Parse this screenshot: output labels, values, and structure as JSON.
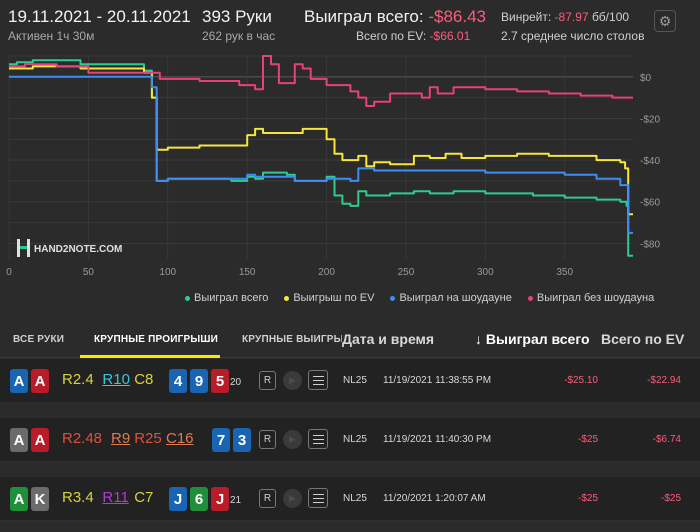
{
  "header": {
    "dates": "19.11.2021 - 20.11.2021",
    "active": "Активен 1ч 30м",
    "hands": "393 Руки",
    "per_hour": "262 рук в час",
    "won_label": "Выиграл всего:",
    "won_value": "-$86.43",
    "ev_label": "Всего по EV:",
    "ev_value": "-$66.01",
    "winrate_label": "Винрейт:",
    "winrate_value": "-87.97",
    "winrate_unit": "бб/100",
    "tables": "2.7 среднее число столов",
    "gear_icon": "gear-icon"
  },
  "chart_data": {
    "type": "line",
    "watermark": "HAND2NOTE.COM",
    "xlim": [
      0,
      393
    ],
    "ylim": [
      -88,
      10
    ],
    "x_ticks": [
      0,
      50,
      100,
      150,
      200,
      250,
      300,
      350
    ],
    "x_tick_labels": [
      "0",
      "50",
      "100",
      "150",
      "200",
      "250",
      "300",
      "350"
    ],
    "y_ticks": [
      0,
      -20,
      -40,
      -60,
      -80
    ],
    "y_tick_labels": [
      "$0",
      "-$20",
      "-$40",
      "-$60",
      "-$80"
    ],
    "grid": true,
    "legend_position": "bottom",
    "series": [
      {
        "name": "Выиграл всего",
        "color": "#2ecc8f",
        "points": [
          [
            0,
            6
          ],
          [
            5,
            7
          ],
          [
            15,
            8
          ],
          [
            45,
            6
          ],
          [
            85,
            3
          ],
          [
            90,
            -10
          ],
          [
            93,
            -50
          ],
          [
            100,
            -49
          ],
          [
            140,
            -50
          ],
          [
            150,
            -48
          ],
          [
            155,
            -49
          ],
          [
            160,
            -46
          ],
          [
            175,
            -47
          ],
          [
            180,
            -50
          ],
          [
            195,
            -50
          ],
          [
            200,
            -48
          ],
          [
            205,
            -57
          ],
          [
            210,
            -61
          ],
          [
            215,
            -62
          ],
          [
            220,
            -55
          ],
          [
            225,
            -57
          ],
          [
            240,
            -56
          ],
          [
            255,
            -55
          ],
          [
            265,
            -56
          ],
          [
            280,
            -55
          ],
          [
            300,
            -56
          ],
          [
            330,
            -57
          ],
          [
            350,
            -58
          ],
          [
            370,
            -59
          ],
          [
            385,
            -60
          ],
          [
            389,
            -62
          ],
          [
            390,
            -86
          ],
          [
            393,
            -86
          ]
        ]
      },
      {
        "name": "Выигрыш по EV",
        "color": "#f5e63c",
        "points": [
          [
            0,
            4
          ],
          [
            15,
            5
          ],
          [
            45,
            4
          ],
          [
            85,
            2
          ],
          [
            90,
            -10
          ],
          [
            93,
            -35
          ],
          [
            100,
            -34
          ],
          [
            120,
            -33
          ],
          [
            140,
            -33
          ],
          [
            150,
            -28
          ],
          [
            155,
            -25
          ],
          [
            160,
            -27
          ],
          [
            175,
            -27
          ],
          [
            185,
            -25
          ],
          [
            195,
            -25
          ],
          [
            200,
            -30
          ],
          [
            205,
            -37
          ],
          [
            210,
            -40
          ],
          [
            215,
            -40
          ],
          [
            220,
            -38
          ],
          [
            225,
            -43
          ],
          [
            230,
            -41
          ],
          [
            240,
            -42
          ],
          [
            255,
            -38
          ],
          [
            265,
            -39
          ],
          [
            275,
            -37
          ],
          [
            285,
            -39
          ],
          [
            300,
            -38
          ],
          [
            320,
            -37
          ],
          [
            340,
            -38
          ],
          [
            355,
            -38
          ],
          [
            370,
            -40
          ],
          [
            385,
            -41
          ],
          [
            388,
            -44
          ],
          [
            390,
            -66
          ],
          [
            393,
            -66
          ]
        ]
      },
      {
        "name": "Выиграл на шоудауне",
        "color": "#3d8ef0",
        "points": [
          [
            0,
            0
          ],
          [
            50,
            0
          ],
          [
            85,
            0
          ],
          [
            90,
            -5
          ],
          [
            93,
            -50
          ],
          [
            100,
            -49
          ],
          [
            140,
            -49
          ],
          [
            150,
            -47
          ],
          [
            155,
            -48
          ],
          [
            165,
            -48
          ],
          [
            180,
            -50
          ],
          [
            195,
            -50
          ],
          [
            200,
            -49
          ],
          [
            215,
            -50
          ],
          [
            220,
            -44
          ],
          [
            230,
            -45
          ],
          [
            280,
            -45
          ],
          [
            300,
            -46
          ],
          [
            330,
            -46
          ],
          [
            350,
            -47
          ],
          [
            370,
            -49
          ],
          [
            385,
            -52
          ],
          [
            389,
            -52
          ],
          [
            390,
            -75
          ],
          [
            393,
            -75
          ]
        ]
      },
      {
        "name": "Выиграл без шоудауна",
        "color": "#e8407a",
        "points": [
          [
            0,
            5
          ],
          [
            10,
            6
          ],
          [
            30,
            5
          ],
          [
            50,
            2
          ],
          [
            85,
            2
          ],
          [
            95,
            -1
          ],
          [
            120,
            -2
          ],
          [
            145,
            -4
          ],
          [
            155,
            -6
          ],
          [
            160,
            10
          ],
          [
            165,
            6
          ],
          [
            170,
            -3
          ],
          [
            180,
            6
          ],
          [
            185,
            4
          ],
          [
            190,
            -1
          ],
          [
            200,
            -4
          ],
          [
            215,
            -7
          ],
          [
            220,
            -10
          ],
          [
            225,
            -14
          ],
          [
            230,
            -12
          ],
          [
            240,
            -8
          ],
          [
            260,
            -10
          ],
          [
            265,
            -5
          ],
          [
            270,
            -8
          ],
          [
            280,
            -5
          ],
          [
            300,
            -6
          ],
          [
            320,
            -7
          ],
          [
            340,
            -8
          ],
          [
            360,
            -9
          ],
          [
            380,
            -10
          ],
          [
            393,
            -10
          ]
        ]
      }
    ]
  },
  "tabs": {
    "all": "ВСЕ РУКИ",
    "big_losses": "КРУПНЫЕ ПРОИГРЫШИ",
    "big_wins": "КРУПНЫЕ ВЫИГРЫШ",
    "col_datetime": "Дата и время",
    "col_won": "↓ Выиграл всего",
    "col_ev": "Всего по EV"
  },
  "colors": {
    "card_blue": "#1a64b4",
    "card_red": "#b71c28",
    "card_gray": "#6b6b6b",
    "card_green": "#1f8f3a",
    "negative": "#ff5a7d"
  },
  "rows": [
    {
      "hole": [
        {
          "r": "A",
          "c": "blue"
        },
        {
          "r": "A",
          "c": "red"
        }
      ],
      "actions": [
        {
          "t": "R2.4",
          "color": "#d8d240",
          "u": false
        },
        {
          "t": "R10",
          "color": "#39c6d6",
          "u": true
        },
        {
          "t": "C8",
          "color": "#d8d240",
          "u": false
        }
      ],
      "board": [
        {
          "r": "4",
          "c": "blue"
        },
        {
          "r": "9",
          "c": "blue"
        },
        {
          "r": "5",
          "c": "red"
        }
      ],
      "extra": "20",
      "stake": "NL25",
      "datetime": "11/19/2021 11:38:55 PM",
      "won": "-$25.10",
      "ev": "-$22.94"
    },
    {
      "hole": [
        {
          "r": "A",
          "c": "gray"
        },
        {
          "r": "A",
          "c": "red"
        }
      ],
      "actions": [
        {
          "t": "R2.48",
          "color": "#e0503c",
          "u": false
        },
        {
          "t": "R9",
          "color": "#e07a50",
          "u": true
        },
        {
          "t": "R25",
          "color": "#e0503c",
          "u": false
        },
        {
          "t": "C16",
          "color": "#e07a50",
          "u": true
        }
      ],
      "board": [
        {
          "r": "7",
          "c": "blue"
        },
        {
          "r": "3",
          "c": "blue"
        }
      ],
      "extra": "",
      "stake": "NL25",
      "datetime": "11/19/2021 11:40:30 PM",
      "won": "-$25",
      "ev": "-$6.74"
    },
    {
      "hole": [
        {
          "r": "A",
          "c": "green"
        },
        {
          "r": "K",
          "c": "gray"
        }
      ],
      "actions": [
        {
          "t": "R3.4",
          "color": "#d8d240",
          "u": false
        },
        {
          "t": "R11",
          "color": "#b23ad6",
          "u": true
        },
        {
          "t": "C7",
          "color": "#d8d240",
          "u": false
        }
      ],
      "board": [
        {
          "r": "J",
          "c": "blue"
        },
        {
          "r": "6",
          "c": "green"
        },
        {
          "r": "J",
          "c": "red"
        }
      ],
      "extra": "21",
      "stake": "NL25",
      "datetime": "11/20/2021 1:20:07 AM",
      "won": "-$25",
      "ev": "-$25"
    }
  ]
}
